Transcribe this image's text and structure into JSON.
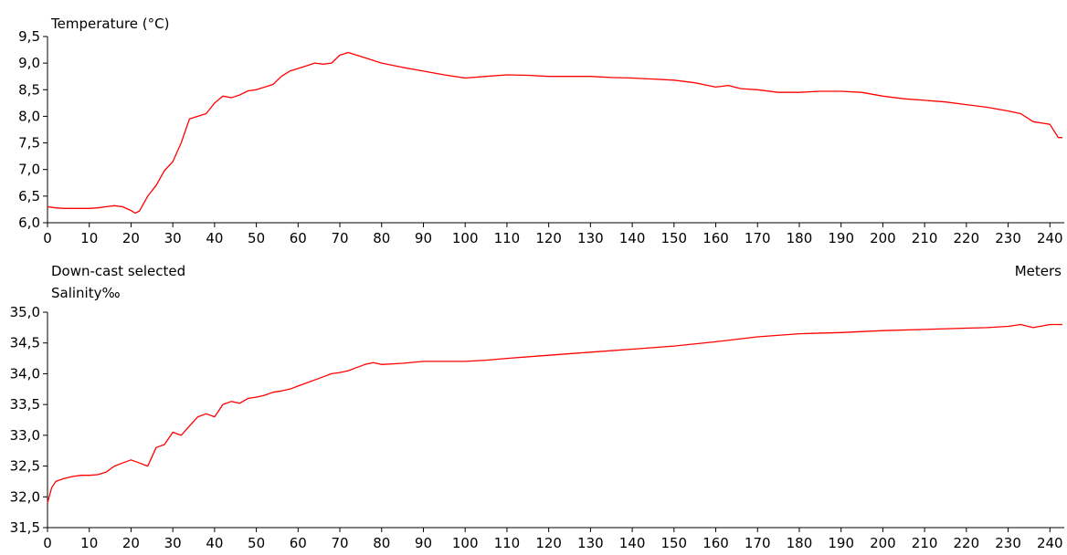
{
  "labels": {
    "status": "Down-cast selected",
    "unit": "Meters"
  },
  "chart_data": [
    {
      "type": "line",
      "title": "Temperature (°C)",
      "xlabel": "Meters",
      "ylabel": "",
      "xlim": [
        0,
        243
      ],
      "ylim": [
        6.0,
        9.5
      ],
      "x_ticks": [
        "0",
        "10",
        "20",
        "30",
        "40",
        "50",
        "60",
        "70",
        "80",
        "90",
        "100",
        "110",
        "120",
        "130",
        "140",
        "150",
        "160",
        "170",
        "180",
        "190",
        "200",
        "210",
        "220",
        "230",
        "240"
      ],
      "y_ticks": [
        "6,0",
        "6,5",
        "7,0",
        "7,5",
        "8,0",
        "8,5",
        "9,0",
        "9,5"
      ],
      "y_tick_values": [
        6.0,
        6.5,
        7.0,
        7.5,
        8.0,
        8.5,
        9.0,
        9.5
      ],
      "grid": false,
      "line_color": "#ff0000",
      "series": [
        {
          "x": [
            0,
            2,
            4,
            6,
            8,
            10,
            12,
            14,
            16,
            18,
            20,
            21,
            22,
            24,
            26,
            28,
            30,
            32,
            34,
            36,
            38,
            40,
            42,
            44,
            46,
            48,
            50,
            52,
            54,
            56,
            58,
            60,
            62,
            64,
            66,
            68,
            70,
            72,
            74,
            76,
            78,
            80,
            85,
            90,
            95,
            100,
            105,
            110,
            115,
            120,
            125,
            130,
            135,
            140,
            145,
            150,
            155,
            160,
            163,
            166,
            170,
            175,
            180,
            185,
            190,
            195,
            200,
            205,
            210,
            215,
            220,
            225,
            230,
            233,
            236,
            240,
            242,
            243
          ],
          "y": [
            6.3,
            6.28,
            6.27,
            6.27,
            6.27,
            6.27,
            6.28,
            6.3,
            6.32,
            6.3,
            6.23,
            6.18,
            6.22,
            6.5,
            6.7,
            6.98,
            7.15,
            7.5,
            7.95,
            8.0,
            8.05,
            8.25,
            8.38,
            8.35,
            8.4,
            8.48,
            8.5,
            8.55,
            8.6,
            8.75,
            8.85,
            8.9,
            8.95,
            9.0,
            8.98,
            9.0,
            9.15,
            9.2,
            9.15,
            9.1,
            9.05,
            9.0,
            8.92,
            8.85,
            8.78,
            8.72,
            8.75,
            8.78,
            8.77,
            8.75,
            8.75,
            8.75,
            8.73,
            8.72,
            8.7,
            8.68,
            8.63,
            8.55,
            8.58,
            8.52,
            8.5,
            8.45,
            8.45,
            8.47,
            8.47,
            8.45,
            8.38,
            8.33,
            8.3,
            8.27,
            8.22,
            8.17,
            8.1,
            8.05,
            7.9,
            7.85,
            7.6,
            7.6
          ]
        }
      ]
    },
    {
      "type": "line",
      "title": "Salinity‰",
      "xlabel": "Meters",
      "ylabel": "",
      "xlim": [
        0,
        243
      ],
      "ylim": [
        31.5,
        35.0
      ],
      "x_ticks": [
        "0",
        "10",
        "20",
        "30",
        "40",
        "50",
        "60",
        "70",
        "80",
        "90",
        "100",
        "110",
        "120",
        "130",
        "140",
        "150",
        "160",
        "170",
        "180",
        "190",
        "200",
        "210",
        "220",
        "230",
        "240"
      ],
      "y_ticks": [
        "31,5",
        "32,0",
        "32,5",
        "33,0",
        "33,5",
        "34,0",
        "34,5",
        "35,0"
      ],
      "y_tick_values": [
        31.5,
        32.0,
        32.5,
        33.0,
        33.5,
        34.0,
        34.5,
        35.0
      ],
      "grid": false,
      "line_color": "#ff0000",
      "series": [
        {
          "x": [
            0,
            1,
            2,
            4,
            6,
            8,
            10,
            12,
            14,
            16,
            18,
            20,
            22,
            24,
            26,
            28,
            30,
            32,
            34,
            36,
            38,
            40,
            42,
            44,
            46,
            48,
            50,
            52,
            54,
            56,
            58,
            60,
            62,
            64,
            66,
            68,
            70,
            72,
            74,
            76,
            78,
            80,
            85,
            90,
            95,
            100,
            105,
            110,
            120,
            130,
            140,
            150,
            160,
            170,
            180,
            190,
            200,
            210,
            220,
            225,
            230,
            233,
            236,
            240,
            243
          ],
          "y": [
            31.9,
            32.15,
            32.25,
            32.3,
            32.33,
            32.35,
            32.35,
            32.36,
            32.4,
            32.5,
            32.55,
            32.6,
            32.55,
            32.5,
            32.8,
            32.85,
            33.05,
            33.0,
            33.15,
            33.3,
            33.35,
            33.3,
            33.5,
            33.55,
            33.52,
            33.6,
            33.62,
            33.65,
            33.7,
            33.72,
            33.75,
            33.8,
            33.85,
            33.9,
            33.95,
            34.0,
            34.02,
            34.05,
            34.1,
            34.15,
            34.18,
            34.15,
            34.17,
            34.2,
            34.2,
            34.2,
            34.22,
            34.25,
            34.3,
            34.35,
            34.4,
            34.45,
            34.52,
            34.6,
            34.65,
            34.67,
            34.7,
            34.72,
            34.74,
            34.75,
            34.77,
            34.8,
            34.75,
            34.8,
            34.8
          ]
        }
      ]
    }
  ]
}
